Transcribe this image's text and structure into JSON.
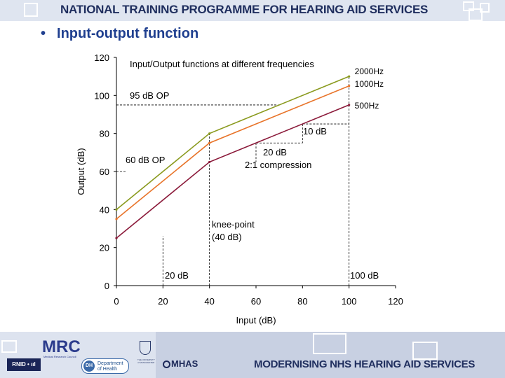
{
  "header": {
    "title": "NATIONAL TRAINING PROGRAMME FOR  HEARING AID SERVICES"
  },
  "bullet": {
    "marker": "•",
    "text": "Input-output function"
  },
  "chart_data": {
    "type": "line",
    "title": "Input/Output functions at different frequencies",
    "xlabel": "Input (dB)",
    "ylabel": "Output (dB)",
    "xlim": [
      0,
      120
    ],
    "ylim": [
      0,
      120
    ],
    "x_ticks": [
      0,
      20,
      40,
      60,
      80,
      100,
      120
    ],
    "y_ticks": [
      0,
      20,
      40,
      60,
      80,
      100,
      120
    ],
    "grid": false,
    "series": [
      {
        "name": "2000Hz",
        "color": "#8a9a1e",
        "x": [
          0,
          40,
          100
        ],
        "y": [
          40,
          80,
          110
        ]
      },
      {
        "name": "1000Hz",
        "color": "#e8742a",
        "x": [
          0,
          40,
          100
        ],
        "y": [
          35,
          75,
          105
        ]
      },
      {
        "name": "500Hz",
        "color": "#8b1a3a",
        "x": [
          0,
          40,
          100
        ],
        "y": [
          25,
          65,
          95
        ]
      }
    ],
    "annotations": [
      {
        "text": "95 dB OP"
      },
      {
        "text": "60 dB OP"
      },
      {
        "text": "10 dB"
      },
      {
        "text": "20 dB"
      },
      {
        "text": "2:1 compression"
      },
      {
        "text": "knee-point"
      },
      {
        "text": "(40 dB)"
      },
      {
        "text": "20 dB"
      },
      {
        "text": "100 dB"
      }
    ]
  },
  "footer": {
    "title": "MODERNISING NHS HEARING AID SERVICES",
    "mrc": "MRC",
    "mrc_sub": "Medical Research Council",
    "rnid": "RNID • ııl",
    "dh_badge": "DH",
    "dh_text": "Department of Health",
    "uni_text": "THE UNIVERSITY of MANCHESTER",
    "mhas": "MHAS"
  },
  "colors": {
    "header_band": "#dfe5f0",
    "header_text": "#1f2e5e",
    "bullet_text": "#1f3f8f",
    "axis": "#000000",
    "guide": "#000000"
  }
}
